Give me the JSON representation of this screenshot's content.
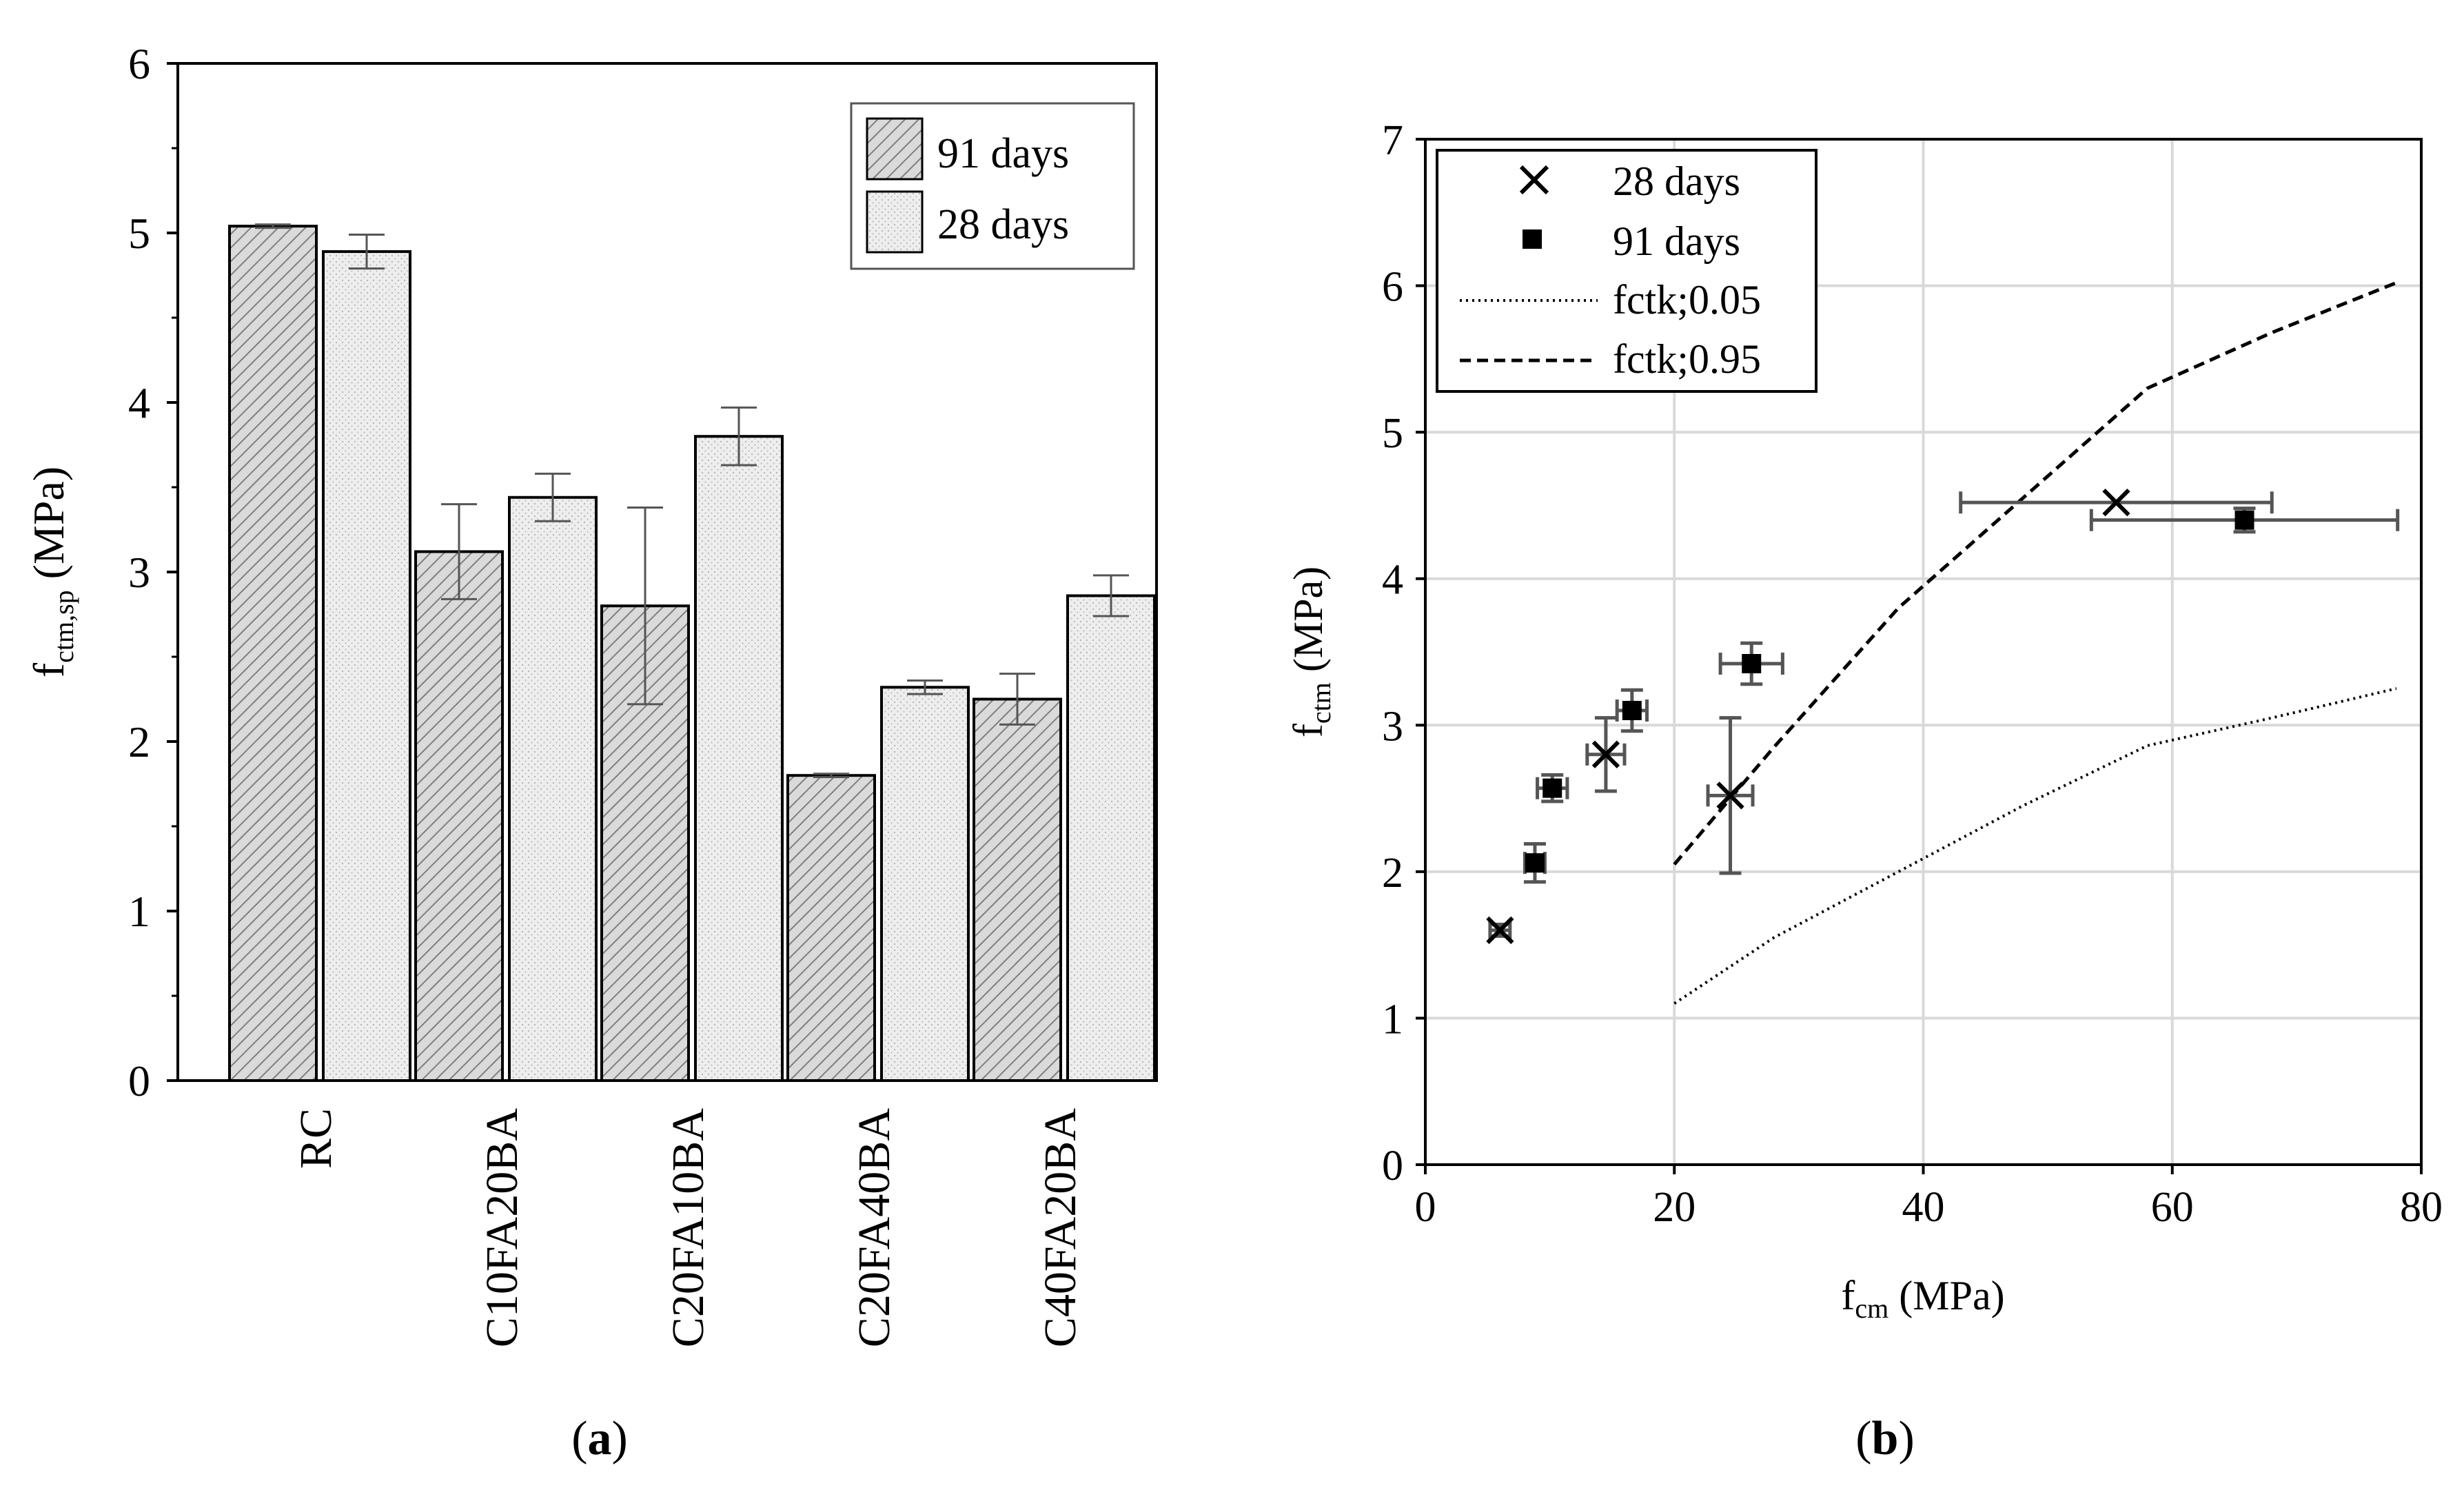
{
  "chart_data": [
    {
      "type": "bar",
      "panel_label": "a",
      "ylabel_main": "f",
      "ylabel_sub": "ctm,sp",
      "ylabel_unit": " (MPa)",
      "ylim": [
        0,
        6
      ],
      "yticks": [
        "0",
        "1",
        "2",
        "3",
        "4",
        "5",
        "6"
      ],
      "categories": [
        "RC",
        "C10FA20BA",
        "C20FA10BA",
        "C20FA40BA",
        "C40FA20BA"
      ],
      "series": [
        {
          "name": "91 days",
          "values": [
            5.04,
            3.12,
            2.8,
            1.8,
            2.25
          ],
          "errors": [
            0.01,
            0.28,
            0.58,
            0.01,
            0.15
          ],
          "fill": "#d6d6d6"
        },
        {
          "name": "28 days",
          "values": [
            4.89,
            3.44,
            3.8,
            2.32,
            2.86
          ],
          "errors": [
            0.1,
            0.14,
            0.17,
            0.04,
            0.12
          ],
          "fill": "#ececec"
        }
      ],
      "legend_position": "top-right",
      "colors": {
        "frame": "#000000",
        "error_bar": "#555555",
        "hatch": "#8a8a8a"
      }
    },
    {
      "type": "scatter",
      "panel_label": "b",
      "xlabel_main": "f",
      "xlabel_sub": "cm",
      "xlabel_unit": " (MPa)",
      "ylabel_main": "f",
      "ylabel_sub": "ctm",
      "ylabel_unit": " (MPa)",
      "xlim": [
        0,
        80
      ],
      "ylim": [
        0,
        7
      ],
      "xticks": [
        "0",
        "20",
        "40",
        "60",
        "80"
      ],
      "yticks": [
        "0",
        "1",
        "2",
        "3",
        "4",
        "5",
        "6",
        "7"
      ],
      "grid": true,
      "series": [
        {
          "name": "28 days",
          "marker": "x",
          "points": [
            {
              "x": 6.0,
              "y": 1.6,
              "xerr": 0.8,
              "yerr": 0.04
            },
            {
              "x": 14.5,
              "y": 2.8,
              "xerr": 1.5,
              "yerr": 0.25
            },
            {
              "x": 24.5,
              "y": 2.52,
              "xerr": 1.8,
              "yerr": 0.53
            },
            {
              "x": 55.5,
              "y": 4.52,
              "xerr": 12.5,
              "yerr": 0.0
            }
          ]
        },
        {
          "name": "91 days",
          "marker": "square",
          "points": [
            {
              "x": 8.8,
              "y": 2.06,
              "xerr": 0.8,
              "yerr": 0.13
            },
            {
              "x": 10.2,
              "y": 2.57,
              "xerr": 1.2,
              "yerr": 0.09
            },
            {
              "x": 16.6,
              "y": 3.1,
              "xerr": 1.2,
              "yerr": 0.14
            },
            {
              "x": 26.2,
              "y": 3.42,
              "xerr": 2.5,
              "yerr": 0.14
            },
            {
              "x": 65.8,
              "y": 4.4,
              "xerr": 12.3,
              "yerr": 0.08
            }
          ]
        },
        {
          "name": "fctk;0.05",
          "line": "dotted",
          "points": [
            {
              "x": 20,
              "y": 1.1
            },
            {
              "x": 28,
              "y": 1.55
            },
            {
              "x": 38,
              "y": 2.0
            },
            {
              "x": 48,
              "y": 2.45
            },
            {
              "x": 58,
              "y": 2.86
            },
            {
              "x": 68,
              "y": 3.05
            },
            {
              "x": 78,
              "y": 3.25
            }
          ]
        },
        {
          "name": "fctk;0.95",
          "line": "dashed",
          "points": [
            {
              "x": 20,
              "y": 2.05
            },
            {
              "x": 28,
              "y": 2.85
            },
            {
              "x": 38,
              "y": 3.8
            },
            {
              "x": 48,
              "y": 4.55
            },
            {
              "x": 58,
              "y": 5.3
            },
            {
              "x": 68,
              "y": 5.68
            },
            {
              "x": 78,
              "y": 6.02
            }
          ]
        }
      ],
      "legend_position": "top-left",
      "colors": {
        "grid": "#d9d9d9",
        "error_bar": "#555555",
        "marker": "#000000"
      }
    }
  ]
}
